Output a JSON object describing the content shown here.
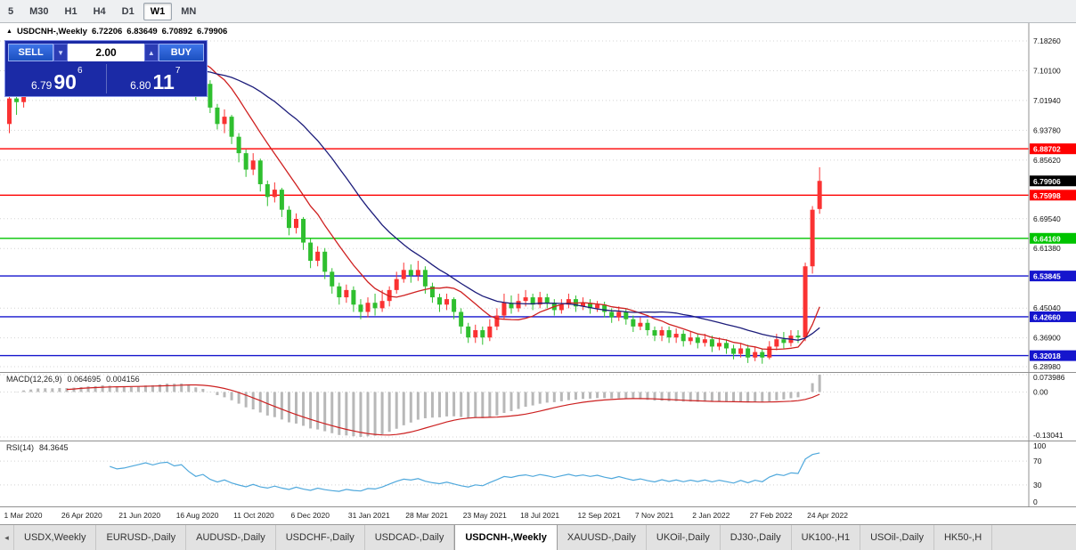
{
  "toolbar": {
    "timeframes": [
      {
        "label": "5",
        "active": false
      },
      {
        "label": "M30",
        "active": false
      },
      {
        "label": "H1",
        "active": false
      },
      {
        "label": "H4",
        "active": false
      },
      {
        "label": "D1",
        "active": false
      },
      {
        "label": "W1",
        "active": true
      },
      {
        "label": "MN",
        "active": false
      }
    ]
  },
  "chart_title": {
    "marker": "▲",
    "symbol": "USDCNH-,Weekly",
    "open": "6.72206",
    "high": "6.83649",
    "low": "6.70892",
    "close": "6.79906"
  },
  "trade_panel": {
    "sell_label": "SELL",
    "buy_label": "BUY",
    "volume": "2.00",
    "down_arrow": "▼",
    "up_arrow": "▲",
    "sell_price": {
      "handle": "6.79",
      "pips": "90",
      "point": "6"
    },
    "buy_price": {
      "handle": "6.80",
      "pips": "11",
      "point": "7"
    }
  },
  "indicators": {
    "macd": {
      "name": "MACD(12,26,9)",
      "value": "0.064695",
      "signal_value": "0.004156"
    },
    "rsi": {
      "name": "RSI(14)",
      "value": "84.3645"
    }
  },
  "tabs": {
    "scroll_left": "◂",
    "items": [
      {
        "label": "USDX,Weekly",
        "active": false
      },
      {
        "label": "EURUSD-,Daily",
        "active": false
      },
      {
        "label": "AUDUSD-,Daily",
        "active": false
      },
      {
        "label": "USDCHF-,Daily",
        "active": false
      },
      {
        "label": "USDCAD-,Daily",
        "active": false
      },
      {
        "label": "USDCNH-,Weekly",
        "active": true
      },
      {
        "label": "XAUUSD-,Daily",
        "active": false
      },
      {
        "label": "UKOil-,Daily",
        "active": false
      },
      {
        "label": "DJ30-,Daily",
        "active": false
      },
      {
        "label": "UK100-,H1",
        "active": false
      },
      {
        "label": "USOil-,Daily",
        "active": false
      },
      {
        "label": "HK50-,H",
        "active": false
      }
    ]
  },
  "chart_data": {
    "type": "candlestick",
    "symbol": "USDCNH-",
    "timeframe": "Weekly",
    "ohlc_current": {
      "open": 6.72206,
      "high": 6.83649,
      "low": 6.70892,
      "close": 6.79906
    },
    "colors": {
      "up": "#fa3232",
      "down": "#2fbf2f",
      "ma_fast": "#cf2020",
      "ma_slow": "#1c1c7a",
      "macd_bar": "#b8b8b8",
      "macd_signal": "#cc2020",
      "rsi": "#4fa8dc"
    },
    "price_axis": {
      "ticks": [
        {
          "label": "7.18260",
          "value": 7.1826
        },
        {
          "label": "7.10100",
          "value": 7.101
        },
        {
          "label": "7.01940",
          "value": 7.0194
        },
        {
          "label": "6.93780",
          "value": 6.9378
        },
        {
          "label": "6.85620",
          "value": 6.8562
        },
        {
          "label": "6.69540",
          "value": 6.6954
        },
        {
          "label": "6.61380",
          "value": 6.6138
        },
        {
          "label": "6.45040",
          "value": 6.4504
        },
        {
          "label": "6.36900",
          "value": 6.369
        },
        {
          "label": "6.28980",
          "value": 6.2898
        }
      ]
    },
    "hlines": [
      {
        "label": "6.88702",
        "value": 6.88702,
        "color": "#fe0000"
      },
      {
        "label": "6.75998",
        "value": 6.75998,
        "color": "#fe0000"
      },
      {
        "label": "6.64169",
        "value": 6.64169,
        "color": "#00c400"
      },
      {
        "label": "6.53845",
        "value": 6.53845,
        "color": "#1515cd"
      },
      {
        "label": "6.42660",
        "value": 6.4266,
        "color": "#1515cd"
      },
      {
        "label": "6.32018",
        "value": 6.32018,
        "color": "#1515cd"
      }
    ],
    "current_price": {
      "label": "6.79906",
      "value": 6.79906,
      "bg": "#000000"
    },
    "moving_averages": [
      {
        "period": 10,
        "color": "#cf2020"
      },
      {
        "period": 25,
        "color": "#1c1c7a"
      }
    ],
    "macd": {
      "params": "12,26,9",
      "axis": [
        "0.073986",
        "0.00",
        "-0.13041"
      ]
    },
    "rsi": {
      "params": "14",
      "levels": [
        {
          "label": "100",
          "value": 100
        },
        {
          "label": "70",
          "value": 70
        },
        {
          "label": "30",
          "value": 30
        },
        {
          "label": "0",
          "value": 0
        }
      ]
    },
    "x_labels": [
      {
        "i": 0,
        "text": "1 Mar 2020"
      },
      {
        "i": 8,
        "text": "26 Apr 2020"
      },
      {
        "i": 16,
        "text": "21 Jun 2020"
      },
      {
        "i": 24,
        "text": "16 Aug 2020"
      },
      {
        "i": 32,
        "text": "11 Oct 2020"
      },
      {
        "i": 40,
        "text": "6 Dec 2020"
      },
      {
        "i": 48,
        "text": "31 Jan 2021"
      },
      {
        "i": 56,
        "text": "28 Mar 2021"
      },
      {
        "i": 64,
        "text": "23 May 2021"
      },
      {
        "i": 72,
        "text": "18 Jul 2021"
      },
      {
        "i": 80,
        "text": "12 Sep 2021"
      },
      {
        "i": 88,
        "text": "7 Nov 2021"
      },
      {
        "i": 96,
        "text": "2 Jan 2022"
      },
      {
        "i": 104,
        "text": "27 Feb 2022"
      },
      {
        "i": 112,
        "text": "24 Apr 2022"
      }
    ],
    "candles": [
      [
        6.955,
        7.035,
        6.93,
        7.025
      ],
      [
        7.025,
        7.06,
        6.98,
        7.015
      ],
      [
        7.015,
        7.12,
        7.0,
        7.095
      ],
      [
        7.095,
        7.11,
        7.05,
        7.075
      ],
      [
        7.075,
        7.115,
        7.06,
        7.09
      ],
      [
        7.09,
        7.1,
        7.045,
        7.065
      ],
      [
        7.065,
        7.09,
        7.04,
        7.06
      ],
      [
        7.06,
        7.095,
        7.05,
        7.075
      ],
      [
        7.075,
        7.09,
        7.05,
        7.065
      ],
      [
        7.065,
        7.1,
        7.055,
        7.085
      ],
      [
        7.085,
        7.115,
        7.07,
        7.095
      ],
      [
        7.095,
        7.13,
        7.08,
        7.11
      ],
      [
        7.11,
        7.135,
        7.085,
        7.1
      ],
      [
        7.1,
        7.15,
        7.09,
        7.125
      ],
      [
        7.125,
        7.14,
        7.07,
        7.09
      ],
      [
        7.09,
        7.11,
        7.05,
        7.07
      ],
      [
        7.07,
        7.1,
        7.055,
        7.08
      ],
      [
        7.08,
        7.13,
        7.06,
        7.1
      ],
      [
        7.1,
        7.15,
        7.09,
        7.12
      ],
      [
        7.12,
        7.17,
        7.1,
        7.145
      ],
      [
        7.145,
        7.16,
        7.11,
        7.13
      ],
      [
        7.13,
        7.185,
        7.12,
        7.155
      ],
      [
        7.155,
        7.18,
        7.13,
        7.165
      ],
      [
        7.165,
        7.175,
        7.12,
        7.14
      ],
      [
        7.14,
        7.17,
        7.125,
        7.155
      ],
      [
        7.155,
        7.16,
        7.08,
        7.1
      ],
      [
        7.1,
        7.11,
        7.02,
        7.045
      ],
      [
        7.045,
        7.09,
        7.03,
        7.065
      ],
      [
        7.065,
        7.075,
        6.985,
        7.0
      ],
      [
        7.0,
        7.01,
        6.94,
        6.955
      ],
      [
        6.955,
        6.995,
        6.93,
        6.975
      ],
      [
        6.975,
        6.98,
        6.9,
        6.92
      ],
      [
        6.92,
        6.93,
        6.85,
        6.875
      ],
      [
        6.875,
        6.885,
        6.81,
        6.83
      ],
      [
        6.83,
        6.875,
        6.815,
        6.855
      ],
      [
        6.855,
        6.86,
        6.77,
        6.79
      ],
      [
        6.79,
        6.8,
        6.73,
        6.755
      ],
      [
        6.755,
        6.795,
        6.74,
        6.775
      ],
      [
        6.775,
        6.78,
        6.7,
        6.72
      ],
      [
        6.72,
        6.73,
        6.65,
        6.67
      ],
      [
        6.67,
        6.71,
        6.655,
        6.695
      ],
      [
        6.695,
        6.7,
        6.61,
        6.63
      ],
      [
        6.63,
        6.64,
        6.56,
        6.58
      ],
      [
        6.58,
        6.62,
        6.565,
        6.605
      ],
      [
        6.605,
        6.615,
        6.53,
        6.55
      ],
      [
        6.55,
        6.56,
        6.49,
        6.51
      ],
      [
        6.51,
        6.52,
        6.46,
        6.48
      ],
      [
        6.48,
        6.515,
        6.465,
        6.5
      ],
      [
        6.5,
        6.51,
        6.44,
        6.46
      ],
      [
        6.46,
        6.475,
        6.42,
        6.44
      ],
      [
        6.44,
        6.48,
        6.425,
        6.465
      ],
      [
        6.465,
        6.49,
        6.43,
        6.45
      ],
      [
        6.45,
        6.5,
        6.44,
        6.47
      ],
      [
        6.47,
        6.51,
        6.455,
        6.5
      ],
      [
        6.5,
        6.55,
        6.49,
        6.53
      ],
      [
        6.53,
        6.575,
        6.52,
        6.555
      ],
      [
        6.555,
        6.57,
        6.52,
        6.54
      ],
      [
        6.54,
        6.58,
        6.525,
        6.555
      ],
      [
        6.555,
        6.565,
        6.49,
        6.51
      ],
      [
        6.51,
        6.52,
        6.465,
        6.48
      ],
      [
        6.48,
        6.49,
        6.44,
        6.46
      ],
      [
        6.46,
        6.49,
        6.445,
        6.475
      ],
      [
        6.475,
        6.48,
        6.42,
        6.44
      ],
      [
        6.44,
        6.45,
        6.38,
        6.4
      ],
      [
        6.4,
        6.41,
        6.355,
        6.37
      ],
      [
        6.37,
        6.405,
        6.355,
        6.39
      ],
      [
        6.39,
        6.4,
        6.35,
        6.37
      ],
      [
        6.37,
        6.42,
        6.36,
        6.4
      ],
      [
        6.4,
        6.45,
        6.39,
        6.43
      ],
      [
        6.43,
        6.49,
        6.42,
        6.465
      ],
      [
        6.465,
        6.485,
        6.435,
        6.45
      ],
      [
        6.45,
        6.49,
        6.44,
        6.47
      ],
      [
        6.47,
        6.5,
        6.455,
        6.48
      ],
      [
        6.48,
        6.49,
        6.445,
        6.46
      ],
      [
        6.46,
        6.495,
        6.45,
        6.48
      ],
      [
        6.48,
        6.49,
        6.45,
        6.465
      ],
      [
        6.465,
        6.475,
        6.43,
        6.445
      ],
      [
        6.445,
        6.475,
        6.435,
        6.46
      ],
      [
        6.46,
        6.49,
        6.45,
        6.475
      ],
      [
        6.475,
        6.485,
        6.44,
        6.455
      ],
      [
        6.455,
        6.48,
        6.445,
        6.465
      ],
      [
        6.465,
        6.475,
        6.435,
        6.45
      ],
      [
        6.45,
        6.47,
        6.44,
        6.46
      ],
      [
        6.46,
        6.468,
        6.425,
        6.44
      ],
      [
        6.44,
        6.45,
        6.41,
        6.425
      ],
      [
        6.425,
        6.455,
        6.415,
        6.44
      ],
      [
        6.44,
        6.45,
        6.405,
        6.42
      ],
      [
        6.42,
        6.43,
        6.385,
        6.4
      ],
      [
        6.4,
        6.425,
        6.39,
        6.41
      ],
      [
        6.41,
        6.42,
        6.375,
        6.39
      ],
      [
        6.39,
        6.4,
        6.36,
        6.375
      ],
      [
        6.375,
        6.4,
        6.36,
        6.39
      ],
      [
        6.39,
        6.4,
        6.355,
        6.37
      ],
      [
        6.37,
        6.395,
        6.355,
        6.38
      ],
      [
        6.38,
        6.39,
        6.345,
        6.36
      ],
      [
        6.36,
        6.385,
        6.35,
        6.37
      ],
      [
        6.37,
        6.38,
        6.34,
        6.355
      ],
      [
        6.355,
        6.38,
        6.345,
        6.365
      ],
      [
        6.365,
        6.375,
        6.33,
        6.345
      ],
      [
        6.345,
        6.37,
        6.335,
        6.355
      ],
      [
        6.355,
        6.365,
        6.325,
        6.34
      ],
      [
        6.34,
        6.35,
        6.31,
        6.325
      ],
      [
        6.325,
        6.355,
        6.315,
        6.34
      ],
      [
        6.34,
        6.35,
        6.3,
        6.315
      ],
      [
        6.315,
        6.345,
        6.305,
        6.33
      ],
      [
        6.33,
        6.34,
        6.298,
        6.315
      ],
      [
        6.315,
        6.36,
        6.31,
        6.345
      ],
      [
        6.345,
        6.38,
        6.335,
        6.365
      ],
      [
        6.365,
        6.385,
        6.34,
        6.355
      ],
      [
        6.355,
        6.39,
        6.345,
        6.375
      ],
      [
        6.375,
        6.39,
        6.355,
        6.37
      ],
      [
        6.37,
        6.575,
        6.36,
        6.565
      ],
      [
        6.565,
        6.73,
        6.545,
        6.72
      ],
      [
        6.72206,
        6.83649,
        6.70892,
        6.79906
      ]
    ]
  }
}
